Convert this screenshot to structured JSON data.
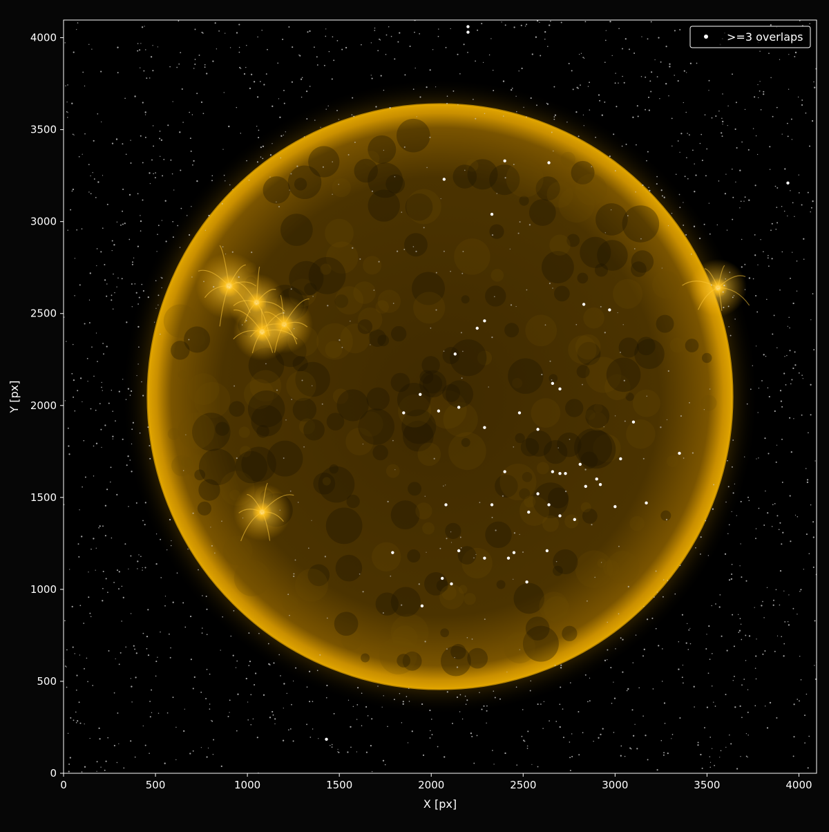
{
  "chart_data": {
    "type": "scatter",
    "title": "",
    "xlabel": "X [px]",
    "ylabel": "Y [px]",
    "xlim": [
      0,
      4096
    ],
    "ylim": [
      0,
      4096
    ],
    "grid": false,
    "xticks": [
      0,
      500,
      1000,
      1500,
      2000,
      2500,
      3000,
      3500,
      4000
    ],
    "yticks": [
      0,
      500,
      1000,
      1500,
      2000,
      2500,
      3000,
      3500,
      4000
    ],
    "background_image": {
      "subject": "solar disk (extreme ultraviolet)",
      "center": [
        2048,
        2048
      ],
      "radius": 1590,
      "active_regions": [
        {
          "x": 900,
          "y": 2650
        },
        {
          "x": 1200,
          "y": 2440
        },
        {
          "x": 1080,
          "y": 2400
        },
        {
          "x": 1050,
          "y": 2560
        },
        {
          "x": 1080,
          "y": 1420
        },
        {
          "x": 3560,
          "y": 2640
        }
      ]
    },
    "series": [
      {
        "name": ">=3 overlaps",
        "marker": "circle",
        "color": "#ffffff",
        "points": [
          [
            1430,
            185
          ],
          [
            3940,
            3210
          ],
          [
            2200,
            4060
          ],
          [
            2200,
            4030
          ],
          [
            2660,
            2120
          ],
          [
            2700,
            2090
          ],
          [
            2290,
            2460
          ],
          [
            2250,
            2420
          ],
          [
            2130,
            2280
          ],
          [
            2660,
            1640
          ],
          [
            2700,
            1630
          ],
          [
            2730,
            1630
          ],
          [
            2900,
            1600
          ],
          [
            2920,
            1570
          ],
          [
            2640,
            1460
          ],
          [
            2700,
            1400
          ],
          [
            2780,
            1380
          ],
          [
            2630,
            1210
          ],
          [
            2420,
            1170
          ],
          [
            1950,
            910
          ],
          [
            1940,
            2060
          ],
          [
            2040,
            1970
          ],
          [
            1850,
            1960
          ],
          [
            2450,
            1200
          ],
          [
            2330,
            1460
          ],
          [
            2080,
            1460
          ],
          [
            2530,
            1420
          ],
          [
            3100,
            1910
          ],
          [
            3350,
            1740
          ],
          [
            2330,
            3040
          ],
          [
            2400,
            3330
          ],
          [
            2070,
            3230
          ],
          [
            2970,
            2520
          ],
          [
            2640,
            3320
          ],
          [
            2830,
            2550
          ],
          [
            2290,
            1880
          ],
          [
            2150,
            1990
          ],
          [
            2480,
            1960
          ],
          [
            2580,
            1870
          ],
          [
            2810,
            1680
          ],
          [
            3030,
            1710
          ],
          [
            2840,
            1560
          ],
          [
            2150,
            1210
          ],
          [
            2290,
            1170
          ],
          [
            2520,
            1040
          ],
          [
            2110,
            1030
          ],
          [
            1790,
            1200
          ],
          [
            2060,
            1060
          ],
          [
            2400,
            1640
          ],
          [
            3000,
            1450
          ],
          [
            3170,
            1470
          ],
          [
            2580,
            1520
          ]
        ]
      }
    ],
    "legend": {
      "position": "top-right",
      "entries": [
        ">=3 overlaps"
      ]
    }
  },
  "colors": {
    "background": "#060606",
    "axes_face": "#000000",
    "spine": "#ffffff",
    "sun_core": "#5a3c00",
    "sun_limb": "#d89b00",
    "sun_glow": "#ffb300",
    "marker": "#ffffff"
  }
}
